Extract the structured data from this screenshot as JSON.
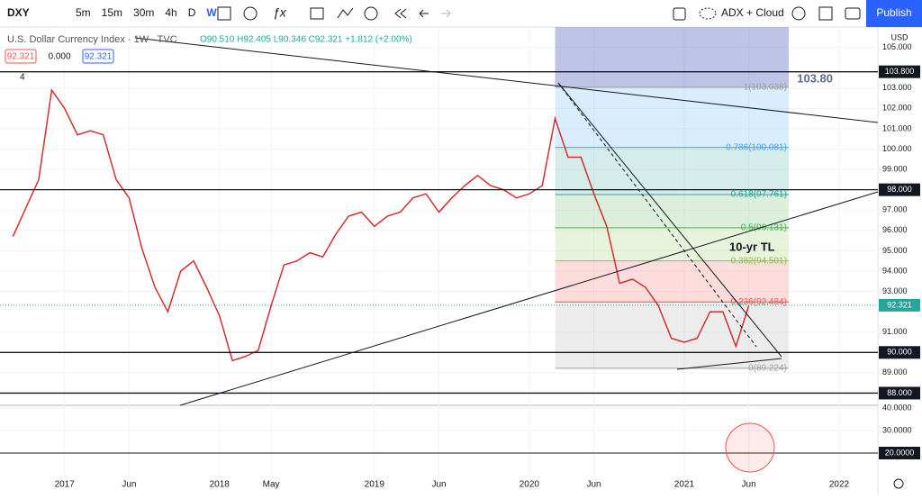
{
  "toolbar": {
    "symbol": "DXY",
    "intervals": [
      "5m",
      "15m",
      "30m",
      "4h",
      "D",
      "W"
    ],
    "active_interval": 5,
    "indicator": "ADX + Cloud",
    "publish": "Publish"
  },
  "legend": {
    "title": "U.S. Dollar Currency Index · 1W · TVC",
    "ohlc": "O90.510 H92.405 L90.346 C92.321 +1.812 (+2.00%)",
    "badges": [
      "92.321",
      "0.000",
      "92.321"
    ],
    "count": "4"
  },
  "chart_data": {
    "type": "line",
    "x": [
      "2016-09",
      "2016-11",
      "2016-12",
      "2017-01",
      "2017-02",
      "2017-03",
      "2017-04",
      "2017-05",
      "2017-06",
      "2017-07",
      "2017-08",
      "2017-09",
      "2017-10",
      "2017-11",
      "2017-12",
      "2018-01",
      "2018-02",
      "2018-03",
      "2018-04",
      "2018-05",
      "2018-06",
      "2018-07",
      "2018-08",
      "2018-09",
      "2018-10",
      "2018-11",
      "2018-12",
      "2019-01",
      "2019-02",
      "2019-03",
      "2019-04",
      "2019-05",
      "2019-06",
      "2019-07",
      "2019-08",
      "2019-09",
      "2019-10",
      "2019-11",
      "2019-12",
      "2020-01",
      "2020-02",
      "2020-03",
      "2020-04",
      "2020-05",
      "2020-06",
      "2020-07",
      "2020-08",
      "2020-09",
      "2020-10",
      "2020-11",
      "2020-12",
      "2021-01",
      "2021-02",
      "2021-03",
      "2021-04",
      "2021-05",
      "2021-06"
    ],
    "series": [
      {
        "color": "#d32f2f",
        "values": [
          95.7,
          98.5,
          102.9,
          102.0,
          100.7,
          100.9,
          100.7,
          98.5,
          97.6,
          95.1,
          93.2,
          92.0,
          94.0,
          94.5,
          93.2,
          91.8,
          89.6,
          89.8,
          90.1,
          92.3,
          94.3,
          94.5,
          94.9,
          94.7,
          95.8,
          96.7,
          96.9,
          96.2,
          96.7,
          96.9,
          97.6,
          97.8,
          96.9,
          97.6,
          98.2,
          98.7,
          98.2,
          98.0,
          97.6,
          97.8,
          98.2,
          101.5,
          99.6,
          99.6,
          97.8,
          96.2,
          93.4,
          93.6,
          93.2,
          92.3,
          90.7,
          90.5,
          90.7,
          92.0,
          92.0,
          90.3,
          92.3
        ]
      }
    ],
    "xlim": [
      "2016-08",
      "2022-04"
    ],
    "xticks": [
      {
        "value": "2017-01",
        "label": "2017"
      },
      {
        "value": "2017-06",
        "label": "Jun"
      },
      {
        "value": "2018-01",
        "label": "2018"
      },
      {
        "value": "2018-05",
        "label": "May"
      },
      {
        "value": "2019-01",
        "label": "2019"
      },
      {
        "value": "2019-06",
        "label": "Jun"
      },
      {
        "value": "2020-01",
        "label": "2020"
      },
      {
        "value": "2020-06",
        "label": "Jun"
      },
      {
        "value": "2021-01",
        "label": "2021"
      },
      {
        "value": "2021-06",
        "label": "Jun"
      },
      {
        "value": "2022-01",
        "label": "2022"
      }
    ],
    "ylim": [
      87.4,
      106
    ],
    "yticks": [
      {
        "value": 89,
        "label": "89.000"
      },
      {
        "value": 91,
        "label": "91.000"
      },
      {
        "value": 93,
        "label": "93.000"
      },
      {
        "value": 94,
        "label": "94.000"
      },
      {
        "value": 95,
        "label": "95.000"
      },
      {
        "value": 96,
        "label": "96.000"
      },
      {
        "value": 97,
        "label": "97.000"
      },
      {
        "value": 99,
        "label": "99.000"
      },
      {
        "value": 100,
        "label": "100.000"
      },
      {
        "value": 101,
        "label": "101.000"
      },
      {
        "value": 102,
        "label": "102.000"
      },
      {
        "value": 103,
        "label": "103.000"
      },
      {
        "value": 105,
        "label": "105.000"
      }
    ],
    "currency": "USD",
    "levels": [
      {
        "value": 103.8,
        "label": "103.800"
      },
      {
        "value": 98,
        "label": "98.000"
      },
      {
        "value": 90,
        "label": "90.000"
      },
      {
        "value": 88,
        "label": "88.000"
      }
    ],
    "current": {
      "value": 92.321,
      "label": "92.321",
      "color": "#26a69a"
    },
    "fib": [
      {
        "value": 103.038,
        "label": "1(103.038)",
        "color": "#9e9e9e"
      },
      {
        "value": 100.081,
        "label": "0.786(100.081)",
        "color": "#42a5f5"
      },
      {
        "value": 97.761,
        "label": "0.618(97.761)",
        "color": "#26a69a"
      },
      {
        "value": 96.131,
        "label": "0.5(96.131)",
        "color": "#4caf50"
      },
      {
        "value": 94.501,
        "label": "0.382(94.501)",
        "color": "#8bc34a"
      },
      {
        "value": 92.484,
        "label": "0.236(92.484)",
        "color": "#ef5350"
      },
      {
        "value": 89.224,
        "label": "0(89.224)",
        "color": "#9e9e9e"
      }
    ],
    "annotations": [
      "103.80",
      "10-yr TL"
    ]
  },
  "indicator": {
    "ylim": [
      9.2,
      41.2
    ],
    "yticks": [
      {
        "value": 40,
        "label": "40.0000"
      },
      {
        "value": 30,
        "label": "30.0000"
      }
    ],
    "level": {
      "value": 20,
      "label": "20.0000"
    }
  }
}
